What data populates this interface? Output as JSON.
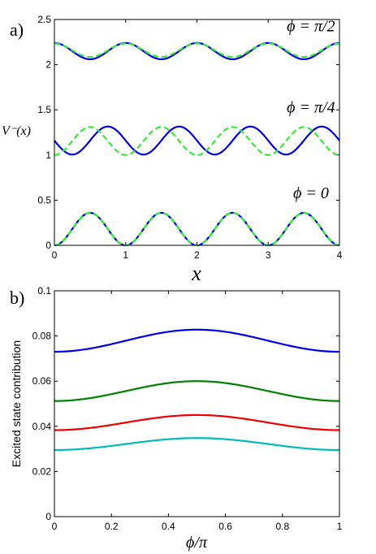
{
  "chart_data": [
    {
      "type": "line",
      "panel_label": "a)",
      "xlabel": "x",
      "ylabel": "V⁻(x)",
      "xlim": [
        0,
        4
      ],
      "ylim": [
        0,
        2.5
      ],
      "x_ticks": [
        "0",
        "1",
        "2",
        "3",
        "4"
      ],
      "y_ticks": [
        "0",
        "0.5",
        "1",
        "1.5",
        "2",
        "2.5"
      ],
      "annotations": [
        {
          "text": "ϕ = π/2",
          "x": 3.6,
          "y": 2.37
        },
        {
          "text": "ϕ = π/4",
          "x": 3.6,
          "y": 1.47
        },
        {
          "text": "ϕ = 0",
          "x": 3.6,
          "y": 0.52
        }
      ],
      "series": [
        {
          "style": "solid",
          "color": "#0000ee",
          "offset": 2.15,
          "amplitude": 0.09,
          "phase": 0.5
        },
        {
          "style": "dashed",
          "color": "#33ee33",
          "offset": 2.16,
          "amplitude": 0.075,
          "phase": -0.5
        },
        {
          "style": "solid",
          "color": "#0000ee",
          "offset": 1.16,
          "amplitude": 0.155,
          "phase": 0.25
        },
        {
          "style": "dashed",
          "color": "#33ee33",
          "offset": 1.155,
          "amplitude": 0.155,
          "phase": 0.0
        },
        {
          "style": "solid",
          "color": "#0000ee",
          "offset": 0.18,
          "amplitude": 0.18,
          "phase": 0.0
        },
        {
          "style": "dashed",
          "color": "#33ee33",
          "offset": 0.18,
          "amplitude": 0.18,
          "phase": 0.0
        }
      ],
      "period": 1
    },
    {
      "type": "line",
      "panel_label": "b)",
      "xlabel": "ϕ/π",
      "ylabel": "Excited state contribution",
      "xlim": [
        0,
        1
      ],
      "ylim": [
        0,
        0.1
      ],
      "x_ticks": [
        "0",
        "0.2",
        "0.4",
        "0.6",
        "0.8",
        "1"
      ],
      "y_ticks": [
        "0",
        "0.02",
        "0.04",
        "0.06",
        "0.08",
        "0.1"
      ],
      "series": [
        {
          "color": "#0000ee",
          "min": 0.073,
          "max": 0.0828
        },
        {
          "color": "#008000",
          "min": 0.0512,
          "max": 0.06
        },
        {
          "color": "#ee0000",
          "min": 0.0383,
          "max": 0.045
        },
        {
          "color": "#00bbbb",
          "min": 0.0295,
          "max": 0.0348
        }
      ]
    }
  ]
}
